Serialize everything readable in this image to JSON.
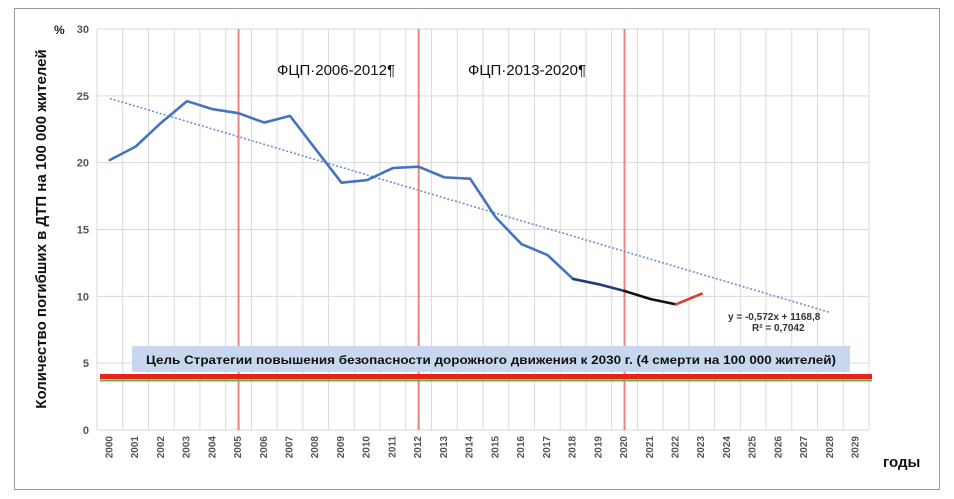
{
  "chart_data": {
    "type": "line",
    "ylabel": "Количество погибших в ДТП на 100 000 жителей",
    "y_unit": "%",
    "xlabel": "годы",
    "ylim": [
      0,
      30
    ],
    "y_ticks": [
      0,
      5,
      10,
      15,
      20,
      25,
      30
    ],
    "x": [
      "2000",
      "2001",
      "2002",
      "2003",
      "2004",
      "2005",
      "2006",
      "2007",
      "2008",
      "2009",
      "2010",
      "2011",
      "2012",
      "2013",
      "2014",
      "2015",
      "2016",
      "2017",
      "2018",
      "2019",
      "2020",
      "2021",
      "2022",
      "2023",
      "2024",
      "2025",
      "2026",
      "2027",
      "2028",
      "2029"
    ],
    "grid": true,
    "series": [
      {
        "segment": "history",
        "color": "#4472c4",
        "x": [
          2000,
          2001,
          2002,
          2003,
          2004,
          2005,
          2006,
          2007,
          2008,
          2009,
          2010,
          2011,
          2012,
          2013,
          2014,
          2015,
          2016,
          2017,
          2018
        ],
        "values": [
          20.2,
          21.2,
          23.0,
          24.6,
          24.0,
          23.7,
          23.0,
          23.5,
          21.0,
          18.5,
          18.7,
          19.6,
          19.7,
          18.9,
          18.8,
          15.9,
          13.9,
          13.1,
          11.3
        ]
      },
      {
        "segment": "2018-2020",
        "color": "#1f3d7a",
        "x": [
          2018,
          2019,
          2020
        ],
        "values": [
          11.3,
          10.9,
          10.4
        ]
      },
      {
        "segment": "2020-2022",
        "color": "#111111",
        "x": [
          2020,
          2021,
          2022
        ],
        "values": [
          10.4,
          9.8,
          9.4
        ]
      },
      {
        "segment": "2022-2023",
        "color": "#e03a2f",
        "x": [
          2022,
          2023
        ],
        "values": [
          9.4,
          10.2
        ]
      }
    ],
    "trendline": {
      "color": "#6a8fd0",
      "style": "dotted",
      "slope": -0.572,
      "intercept": 1168.8,
      "x_range": [
        2000,
        2028
      ],
      "equation": "y = -0,572x + 1168,8",
      "r2": "R² = 0,7042"
    },
    "vertical_markers": [
      {
        "x": 2005,
        "color": "#f08080"
      },
      {
        "x": 2012,
        "color": "#f08080"
      },
      {
        "x": 2020,
        "color": "#f08080"
      }
    ],
    "period_labels": [
      {
        "text": "ФЦП·2006-2012¶"
      },
      {
        "text": "ФЦП·2013-2020¶"
      }
    ],
    "target": {
      "value": 4,
      "color": "#e8231a",
      "label": "Цель Стратегии повышения безопасности дорожного движения к 2030 г. (4 смерти на 100 000 жителей)",
      "label_bg": "#c7d7ee"
    },
    "target_underline": {
      "value": 3.7,
      "color": "#6cb04a"
    }
  }
}
